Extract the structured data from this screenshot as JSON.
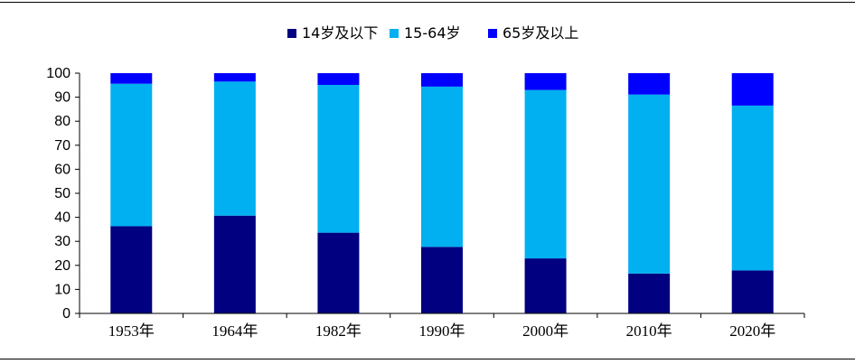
{
  "chart_data": {
    "type": "bar",
    "stacked": true,
    "title": "",
    "xlabel": "",
    "ylabel": "",
    "ylim": [
      0,
      100
    ],
    "yticks": [
      0,
      10,
      20,
      30,
      40,
      50,
      60,
      70,
      80,
      90,
      100
    ],
    "categories": [
      "1953年",
      "1964年",
      "1982年",
      "1990年",
      "2000年",
      "2010年",
      "2020年"
    ],
    "series": [
      {
        "name": "14岁及以下",
        "color": "#000080",
        "values": [
          36.3,
          40.7,
          33.6,
          27.7,
          22.9,
          16.6,
          17.9
        ]
      },
      {
        "name": "15-64岁",
        "color": "#00B0F0",
        "values": [
          59.3,
          55.8,
          61.5,
          66.7,
          70.1,
          74.5,
          68.6
        ]
      },
      {
        "name": "65岁及以上",
        "color": "#0000FF",
        "values": [
          4.4,
          3.5,
          4.9,
          5.6,
          7.0,
          8.9,
          13.5
        ]
      }
    ],
    "legend_position": "top-center",
    "grid": false
  }
}
